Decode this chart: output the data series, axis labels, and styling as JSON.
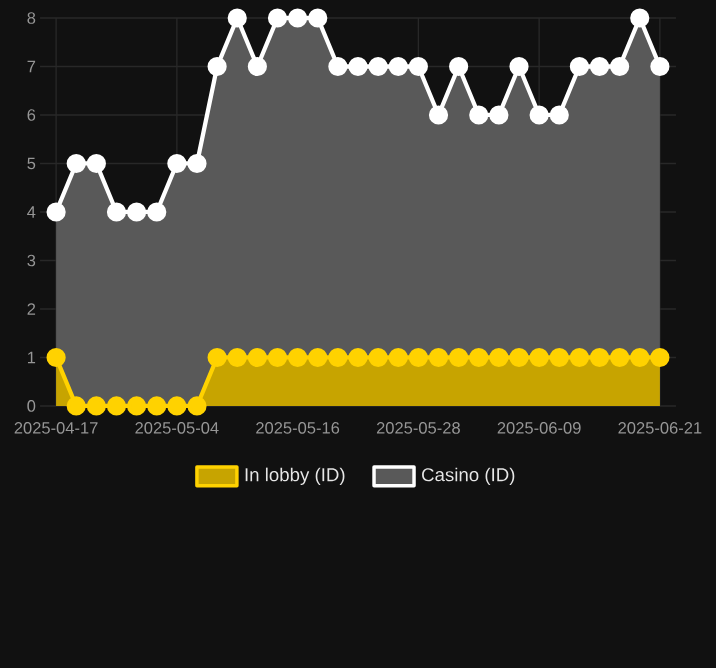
{
  "chart_data": {
    "type": "area",
    "categories": [
      "2025-04-17",
      null,
      null,
      null,
      null,
      null,
      "2025-05-04",
      null,
      null,
      null,
      null,
      null,
      "2025-05-16",
      null,
      null,
      null,
      null,
      null,
      "2025-05-28",
      null,
      null,
      null,
      null,
      null,
      "2025-06-09",
      null,
      null,
      null,
      null,
      null,
      "2025-06-21"
    ],
    "series": [
      {
        "name": "In lobby (ID)",
        "color": "#ffd200",
        "values": [
          1,
          0,
          0,
          0,
          0,
          0,
          0,
          0,
          1,
          1,
          1,
          1,
          1,
          1,
          1,
          1,
          1,
          1,
          1,
          1,
          1,
          1,
          1,
          1,
          1,
          1,
          1,
          1,
          1,
          1,
          1
        ]
      },
      {
        "name": "Casino (ID)",
        "color": "#ffffff",
        "values": [
          4,
          5,
          5,
          4,
          4,
          4,
          5,
          5,
          7,
          8,
          7,
          8,
          8,
          8,
          7,
          7,
          7,
          7,
          7,
          6,
          7,
          6,
          6,
          7,
          6,
          6,
          7,
          7,
          7,
          8,
          7
        ]
      }
    ],
    "ylim": [
      0,
      8
    ],
    "yticks": [
      0,
      1,
      2,
      3,
      4,
      5,
      6,
      7,
      8
    ],
    "grid": true,
    "legend": "bottom",
    "marker": "circle",
    "line_style": "solid"
  }
}
